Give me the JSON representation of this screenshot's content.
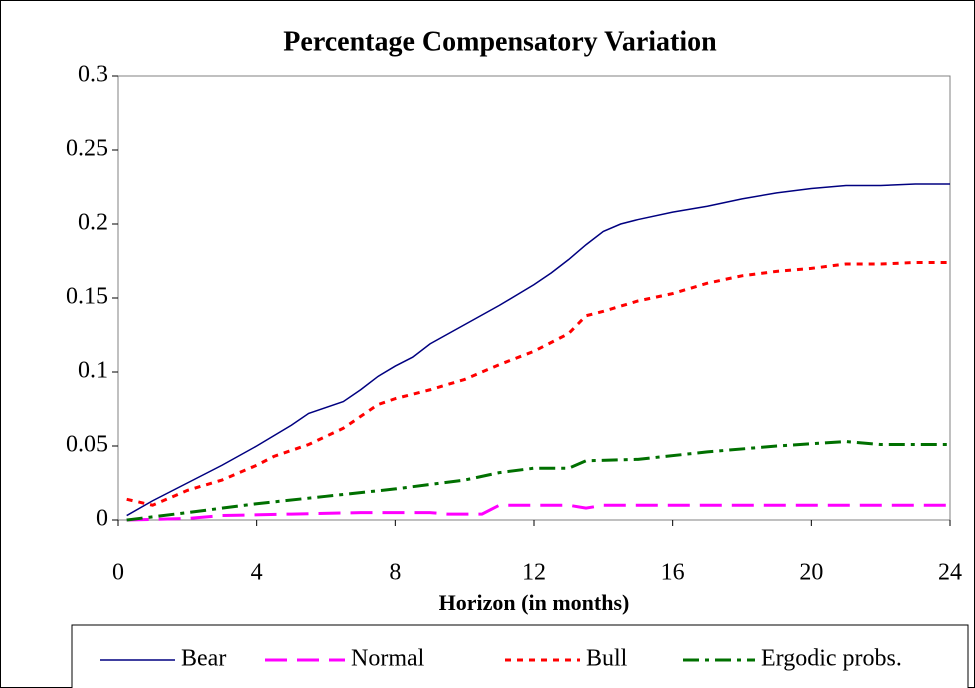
{
  "chart_data": {
    "type": "line",
    "title": "Percentage Compensatory Variation",
    "x_label": "Horizon (in months)",
    "xlim": [
      0,
      24
    ],
    "xticks": [
      0,
      4,
      8,
      12,
      16,
      20,
      24
    ],
    "ylim": [
      0,
      0.3
    ],
    "yticks": [
      0,
      0.05,
      0.1,
      0.15,
      0.2,
      0.25,
      0.3
    ],
    "legend": "bottom",
    "series": [
      {
        "name": "Bear",
        "color": "#000080",
        "x": [
          0.25,
          1,
          2,
          3,
          4,
          5,
          5.5,
          6.5,
          7,
          7.5,
          8,
          8.5,
          9,
          10,
          11,
          12,
          12.5,
          13,
          13.5,
          14,
          14.5,
          15,
          16,
          17,
          18,
          19,
          20,
          21,
          22,
          23,
          24
        ],
        "values": [
          0.003,
          0.013,
          0.025,
          0.037,
          0.05,
          0.064,
          0.072,
          0.08,
          0.088,
          0.097,
          0.104,
          0.11,
          0.119,
          0.132,
          0.145,
          0.159,
          0.167,
          0.176,
          0.186,
          0.195,
          0.2,
          0.203,
          0.208,
          0.212,
          0.217,
          0.221,
          0.224,
          0.226,
          0.226,
          0.227,
          0.227
        ]
      },
      {
        "name": "Normal",
        "color": "#ff00ff",
        "x": [
          0.25,
          2,
          3,
          5,
          7,
          9,
          9.5,
          10.5,
          11,
          13,
          13.5,
          14,
          24
        ],
        "values": [
          0,
          0.001,
          0.003,
          0.004,
          0.005,
          0.005,
          0.004,
          0.004,
          0.01,
          0.01,
          0.008,
          0.01,
          0.01
        ]
      },
      {
        "name": "Bull",
        "color": "#ff0000",
        "x": [
          0.25,
          1,
          2,
          3,
          4,
          4.5,
          5.5,
          6.5,
          7,
          7.5,
          8,
          9,
          10,
          11,
          12,
          13,
          13.5,
          14,
          15,
          16,
          17,
          18,
          19,
          20,
          21,
          22,
          23,
          24
        ],
        "values": [
          0.014,
          0.01,
          0.02,
          0.027,
          0.037,
          0.043,
          0.051,
          0.062,
          0.07,
          0.078,
          0.082,
          0.088,
          0.095,
          0.105,
          0.114,
          0.126,
          0.138,
          0.141,
          0.148,
          0.153,
          0.16,
          0.165,
          0.168,
          0.17,
          0.173,
          0.173,
          0.174,
          0.174
        ]
      },
      {
        "name": "Ergodic probs.",
        "color": "#007000",
        "x": [
          0.25,
          2,
          4,
          6,
          8,
          10,
          11,
          12,
          13,
          13.5,
          15,
          17,
          19,
          21,
          22,
          24
        ],
        "values": [
          0,
          0.005,
          0.011,
          0.016,
          0.021,
          0.027,
          0.032,
          0.035,
          0.035,
          0.04,
          0.041,
          0.046,
          0.05,
          0.053,
          0.051,
          0.051
        ]
      }
    ]
  }
}
